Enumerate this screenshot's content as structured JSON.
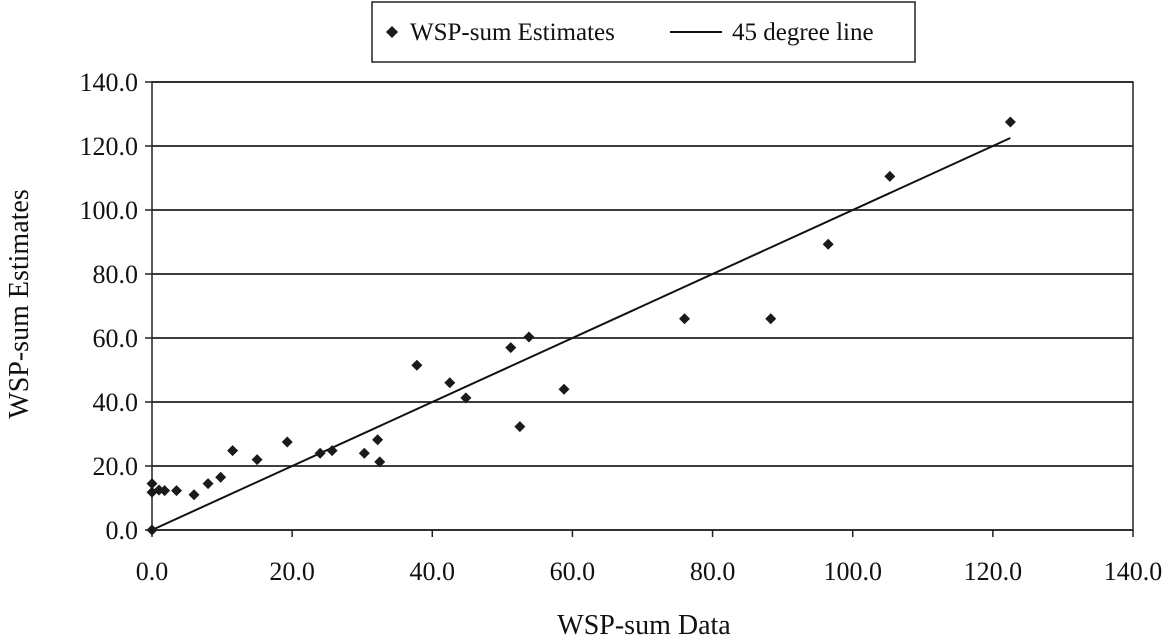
{
  "chart_data": {
    "type": "scatter",
    "xlabel": "WSP-sum Data",
    "ylabel": "WSP-sum Estimates",
    "xlim": [
      0,
      140
    ],
    "ylim": [
      0,
      140
    ],
    "xticks": [
      "0.0",
      "20.0",
      "40.0",
      "60.0",
      "80.0",
      "100.0",
      "120.0",
      "140.0"
    ],
    "yticks": [
      "0.0",
      "20.0",
      "40.0",
      "60.0",
      "80.0",
      "100.0",
      "120.0",
      "140.0"
    ],
    "grid": "horizontal",
    "legend_position": "top-center",
    "series": [
      {
        "name": "WSP-sum Estimates",
        "kind": "scatter",
        "marker": "diamond",
        "color": "#1a1a1a",
        "points": [
          [
            0.0,
            0.0
          ],
          [
            0.0,
            14.5
          ],
          [
            0.0,
            11.8
          ],
          [
            1.0,
            12.5
          ],
          [
            1.8,
            12.3
          ],
          [
            3.5,
            12.3
          ],
          [
            6.0,
            11.0
          ],
          [
            8.0,
            14.5
          ],
          [
            9.8,
            16.5
          ],
          [
            11.5,
            24.8
          ],
          [
            15.0,
            22.0
          ],
          [
            19.3,
            27.5
          ],
          [
            24.0,
            24.0
          ],
          [
            25.7,
            24.8
          ],
          [
            30.3,
            24.0
          ],
          [
            32.2,
            28.2
          ],
          [
            32.5,
            21.3
          ],
          [
            37.8,
            51.5
          ],
          [
            42.5,
            46.0
          ],
          [
            44.8,
            41.3
          ],
          [
            51.2,
            57.0
          ],
          [
            52.5,
            32.3
          ],
          [
            53.8,
            60.3
          ],
          [
            58.8,
            44.0
          ],
          [
            76.0,
            66.0
          ],
          [
            88.3,
            66.0
          ],
          [
            96.5,
            89.3
          ],
          [
            105.3,
            110.5
          ],
          [
            122.5,
            127.5
          ]
        ]
      },
      {
        "name": "45 degree line",
        "kind": "line",
        "color": "#111111",
        "points": [
          [
            0.0,
            0.0
          ],
          [
            122.5,
            122.5
          ]
        ]
      }
    ]
  }
}
